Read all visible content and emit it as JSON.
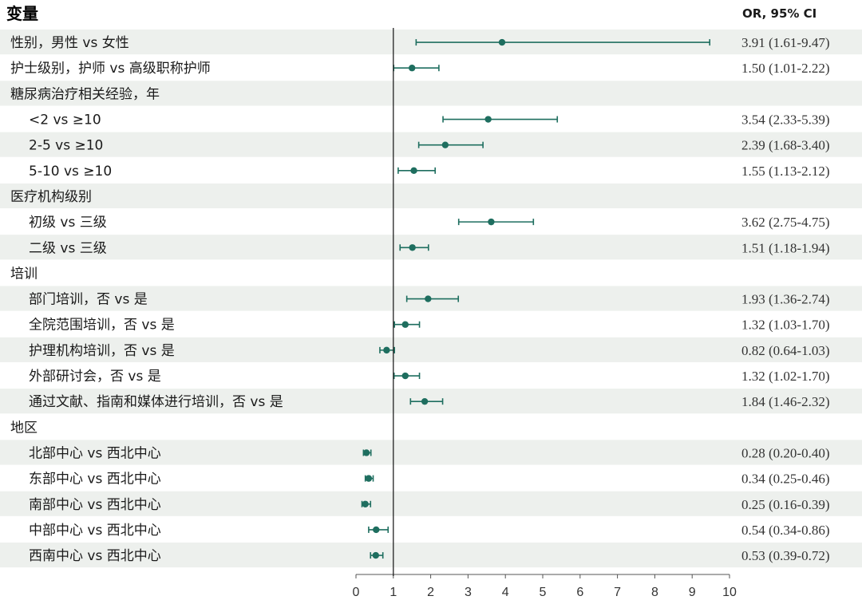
{
  "chart_data": {
    "type": "forest",
    "header_left": "变量",
    "header_right": "OR, 95% CI",
    "reference_line": 1,
    "xlim": [
      0,
      10
    ],
    "x_ticks": [
      "0",
      "1",
      "2",
      "3",
      "4",
      "5",
      "6",
      "7",
      "8",
      "9",
      "10"
    ],
    "colors": {
      "marker": "#1e6e5f",
      "band": "#edf0ed",
      "axis": "#222222"
    },
    "rows": [
      {
        "label": "性别，男性 vs 女性",
        "indent": false,
        "or": 3.91,
        "lo": 1.61,
        "hi": 9.47,
        "text": "3.91 (1.61-9.47)"
      },
      {
        "label": "护士级别，护师 vs 高级职称护师",
        "indent": false,
        "or": 1.5,
        "lo": 1.01,
        "hi": 2.22,
        "text": "1.50 (1.01-2.22)"
      },
      {
        "label": "糖尿病治疗相关经验，年",
        "indent": false
      },
      {
        "label": "<2 vs ≥10",
        "indent": true,
        "or": 3.54,
        "lo": 2.33,
        "hi": 5.39,
        "text": "3.54 (2.33-5.39)"
      },
      {
        "label": "2-5 vs ≥10",
        "indent": true,
        "or": 2.39,
        "lo": 1.68,
        "hi": 3.4,
        "text": "2.39 (1.68-3.40)"
      },
      {
        "label": "5-10 vs ≥10",
        "indent": true,
        "or": 1.55,
        "lo": 1.13,
        "hi": 2.12,
        "text": "1.55 (1.13-2.12)"
      },
      {
        "label": "医疗机构级别",
        "indent": false
      },
      {
        "label": "初级 vs 三级",
        "indent": true,
        "or": 3.62,
        "lo": 2.75,
        "hi": 4.75,
        "text": "3.62 (2.75-4.75)"
      },
      {
        "label": "二级 vs 三级",
        "indent": true,
        "or": 1.51,
        "lo": 1.18,
        "hi": 1.94,
        "text": "1.51 (1.18-1.94)"
      },
      {
        "label": "培训",
        "indent": false
      },
      {
        "label": "部门培训，否 vs 是",
        "indent": true,
        "or": 1.93,
        "lo": 1.36,
        "hi": 2.74,
        "text": "1.93 (1.36-2.74)"
      },
      {
        "label": "全院范围培训，否 vs 是",
        "indent": true,
        "or": 1.32,
        "lo": 1.03,
        "hi": 1.7,
        "text": "1.32 (1.03-1.70)"
      },
      {
        "label": "护理机构培训，否 vs 是",
        "indent": true,
        "or": 0.82,
        "lo": 0.64,
        "hi": 1.03,
        "text": "0.82 (0.64-1.03)"
      },
      {
        "label": "外部研讨会，否 vs 是",
        "indent": true,
        "or": 1.32,
        "lo": 1.02,
        "hi": 1.7,
        "text": "1.32 (1.02-1.70)"
      },
      {
        "label": "通过文献、指南和媒体进行培训，否 vs 是",
        "indent": true,
        "or": 1.84,
        "lo": 1.46,
        "hi": 2.32,
        "text": "1.84 (1.46-2.32)"
      },
      {
        "label": "地区",
        "indent": false
      },
      {
        "label": "北部中心 vs 西北中心",
        "indent": true,
        "or": 0.28,
        "lo": 0.2,
        "hi": 0.4,
        "text": "0.28 (0.20-0.40)"
      },
      {
        "label": "东部中心 vs 西北中心",
        "indent": true,
        "or": 0.34,
        "lo": 0.25,
        "hi": 0.46,
        "text": "0.34 (0.25-0.46)"
      },
      {
        "label": "南部中心 vs 西北中心",
        "indent": true,
        "or": 0.25,
        "lo": 0.16,
        "hi": 0.39,
        "text": "0.25 (0.16-0.39)"
      },
      {
        "label": "中部中心 vs 西北中心",
        "indent": true,
        "or": 0.54,
        "lo": 0.34,
        "hi": 0.86,
        "text": "0.54 (0.34-0.86)"
      },
      {
        "label": "西南中心 vs 西北中心",
        "indent": true,
        "or": 0.53,
        "lo": 0.39,
        "hi": 0.72,
        "text": "0.53 (0.39-0.72)"
      }
    ]
  }
}
